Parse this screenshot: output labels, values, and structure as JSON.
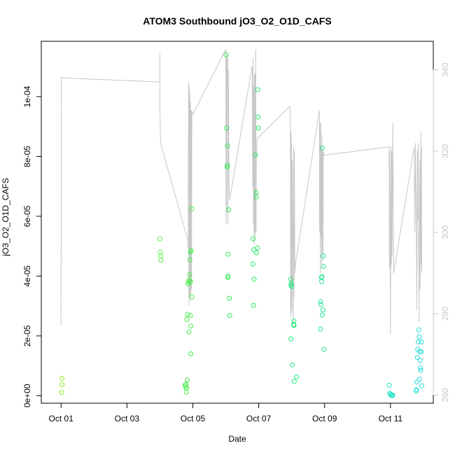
{
  "chart_data": {
    "type": "scatter",
    "title": "ATOM3 Southbound jO3_O2_O1D_CAFS",
    "xlabel": "Date",
    "ylabel": "jO3_O2_O1D_CAFS",
    "x_ticks": [
      "Oct 01",
      "Oct 03",
      "Oct 05",
      "Oct 07",
      "Oct 09",
      "Oct 11"
    ],
    "x_tick_days": [
      1,
      3,
      5,
      7,
      9,
      11
    ],
    "xlim_days": [
      0.4,
      12.3
    ],
    "y_ticks": [
      0,
      2e-05,
      4e-05,
      6e-05,
      8e-05,
      0.0001
    ],
    "y_tick_labels": [
      "0e+00",
      "2e-05",
      "4e-05",
      "6e-05",
      "8e-05",
      "1e-04"
    ],
    "ylim": [
      -2.5e-06,
      0.0001185
    ],
    "y2_ticks": [
      260,
      280,
      300,
      320,
      340
    ],
    "y2_tick_labels": [
      "260",
      "280",
      "300",
      "320",
      "340"
    ],
    "y2lim": [
      258,
      347
    ],
    "colors": {
      "line": "#c8c8c8",
      "axis": "#000000",
      "right_axis": "#c8c8c8",
      "color_start": "#8fee22",
      "color_mid": "#22ee55",
      "color_end": "#22dddd"
    },
    "series": [
      {
        "type": "scatter",
        "points": [
          [
            1.02,
            1.1e-06
          ],
          [
            1.03,
            3.7e-06
          ],
          [
            1.03,
            5.8e-06
          ],
          [
            4.0,
            5.25e-05
          ],
          [
            4.01,
            4.8e-05
          ],
          [
            4.03,
            4.67e-05
          ],
          [
            4.03,
            4.53e-05
          ],
          [
            4.77,
            3.6e-06
          ],
          [
            4.78,
            3e-06
          ],
          [
            4.79,
            3.8e-06
          ],
          [
            4.8,
            1.2e-06
          ],
          [
            4.81,
            2.5e-06
          ],
          [
            4.83,
            5.3e-06
          ],
          [
            4.82,
            2.55e-05
          ],
          [
            4.84,
            2.72e-05
          ],
          [
            4.86,
            3.74e-05
          ],
          [
            4.87,
            3.8e-05
          ],
          [
            4.88,
            3.85e-05
          ],
          [
            4.88,
            2.13e-05
          ],
          [
            4.9,
            4.05e-05
          ],
          [
            4.91,
            4.55e-05
          ],
          [
            4.92,
            4.8e-05
          ],
          [
            4.93,
            3.82e-05
          ],
          [
            4.93,
            2.68e-05
          ],
          [
            4.94,
            2.33e-05
          ],
          [
            4.94,
            1.4e-05
          ],
          [
            4.95,
            4.85e-05
          ],
          [
            4.97,
            3.3e-05
          ],
          [
            4.97,
            6.25e-05
          ],
          [
            6.01,
            0.000114
          ],
          [
            6.02,
            8.95e-05
          ],
          [
            6.04,
            7.65e-05
          ],
          [
            6.05,
            8.35e-05
          ],
          [
            6.05,
            7.7e-05
          ],
          [
            6.06,
            3.95e-05
          ],
          [
            6.07,
            4e-05
          ],
          [
            6.07,
            4.73e-05
          ],
          [
            6.09,
            6.22e-05
          ],
          [
            6.11,
            3.26e-05
          ],
          [
            6.12,
            2.68e-05
          ],
          [
            6.83,
            5.25e-05
          ],
          [
            6.85,
            4.88e-05
          ],
          [
            6.82,
            4.4e-05
          ],
          [
            6.84,
            3.02e-05
          ],
          [
            6.86,
            3.9e-05
          ],
          [
            6.9,
            8.05e-05
          ],
          [
            6.92,
            6.8e-05
          ],
          [
            6.93,
            6.65e-05
          ],
          [
            6.93,
            4.78e-05
          ],
          [
            6.96,
            4.94e-05
          ],
          [
            6.97,
            0.0001023
          ],
          [
            6.98,
            9.32e-05
          ],
          [
            6.99,
            8.95e-05
          ],
          [
            7.97,
            3.9e-05
          ],
          [
            7.98,
            3.7e-05
          ],
          [
            7.99,
            3.75e-05
          ],
          [
            8.0,
            3.65e-05
          ],
          [
            7.98,
            1.9e-05
          ],
          [
            8.02,
            1.03e-05
          ],
          [
            8.07,
            2.5e-05
          ],
          [
            8.07,
            2.35e-05
          ],
          [
            8.06,
            2.38e-05
          ],
          [
            8.08,
            4.8e-06
          ],
          [
            8.15,
            6.3e-06
          ],
          [
            8.88,
            3.15e-05
          ],
          [
            8.89,
            3.05e-05
          ],
          [
            8.9,
            3.95e-05
          ],
          [
            8.91,
            3.82e-05
          ],
          [
            8.92,
            3.98e-05
          ],
          [
            8.93,
            2.7e-05
          ],
          [
            8.88,
            2.23e-05
          ],
          [
            8.95,
            2.87e-05
          ],
          [
            8.96,
            4.68e-05
          ],
          [
            8.97,
            4.32e-05
          ],
          [
            8.98,
            1.55e-05
          ],
          [
            8.93,
            8.28e-05
          ],
          [
            10.96,
            3.5e-06
          ],
          [
            10.98,
            8e-07
          ],
          [
            11.0,
            5e-07
          ],
          [
            11.02,
            2e-07
          ],
          [
            11.05,
            0.0
          ],
          [
            11.07,
            2e-07
          ],
          [
            11.78,
            1.6e-06
          ],
          [
            11.79,
            2e-06
          ],
          [
            11.8,
            4.6e-06
          ],
          [
            11.82,
            1.28e-05
          ],
          [
            11.83,
            1.55e-05
          ],
          [
            11.84,
            1.8e-05
          ],
          [
            11.86,
            2.2e-05
          ],
          [
            11.87,
            1.97e-05
          ],
          [
            11.88,
            5.5e-06
          ],
          [
            11.89,
            1.48e-05
          ],
          [
            11.9,
            1.18e-05
          ],
          [
            11.91,
            9.3e-06
          ],
          [
            11.92,
            8.5e-06
          ],
          [
            11.93,
            1.47e-05
          ],
          [
            11.94,
            1.8e-05
          ],
          [
            11.95,
            3.3e-06
          ]
        ]
      },
      {
        "type": "line",
        "axis": "right",
        "points": [
          [
            1.0,
            277
          ],
          [
            1.01,
            338
          ],
          [
            4.0,
            337
          ],
          [
            4.0,
            344
          ],
          [
            4.0,
            331
          ],
          [
            4.02,
            322
          ],
          [
            4.85,
            298
          ],
          [
            4.86,
            296
          ],
          [
            4.87,
            337
          ],
          [
            4.88,
            282
          ],
          [
            4.89,
            336
          ],
          [
            4.9,
            284
          ],
          [
            4.91,
            334
          ],
          [
            4.92,
            283
          ],
          [
            4.93,
            332
          ],
          [
            4.94,
            285
          ],
          [
            4.95,
            330
          ],
          [
            4.96,
            286
          ],
          [
            4.97,
            330
          ],
          [
            5.0,
            329
          ],
          [
            6.0,
            345
          ],
          [
            6.01,
            302
          ],
          [
            6.02,
            343
          ],
          [
            6.03,
            305
          ],
          [
            6.04,
            344
          ],
          [
            6.05,
            341
          ],
          [
            6.06,
            343
          ],
          [
            6.07,
            302
          ],
          [
            6.08,
            340
          ],
          [
            6.1,
            311
          ],
          [
            6.12,
            308
          ],
          [
            6.8,
            341
          ],
          [
            6.82,
            311
          ],
          [
            6.83,
            343
          ],
          [
            6.84,
            302
          ],
          [
            6.85,
            336
          ],
          [
            6.86,
            297
          ],
          [
            6.87,
            339
          ],
          [
            6.88,
            300
          ],
          [
            6.89,
            339
          ],
          [
            6.9,
            299
          ],
          [
            6.91,
            345
          ],
          [
            6.92,
            300
          ],
          [
            6.93,
            318
          ],
          [
            6.95,
            323
          ],
          [
            7.94,
            331
          ],
          [
            7.96,
            328
          ],
          [
            7.97,
            279
          ],
          [
            7.98,
            325
          ],
          [
            7.99,
            281
          ],
          [
            8.0,
            322
          ],
          [
            8.01,
            280
          ],
          [
            8.02,
            318
          ],
          [
            8.05,
            278
          ],
          [
            8.06,
            321
          ],
          [
            8.07,
            284
          ],
          [
            8.08,
            320
          ],
          [
            8.1,
            290
          ],
          [
            8.13,
            293
          ],
          [
            8.84,
            330
          ],
          [
            8.85,
            300
          ],
          [
            8.86,
            327
          ],
          [
            8.87,
            290
          ],
          [
            8.88,
            327
          ],
          [
            8.89,
            299
          ],
          [
            8.9,
            321
          ],
          [
            8.91,
            291
          ],
          [
            8.92,
            324
          ],
          [
            8.93,
            295
          ],
          [
            8.94,
            320
          ],
          [
            8.95,
            293
          ],
          [
            8.96,
            320
          ],
          [
            8.98,
            319
          ],
          [
            10.96,
            321
          ],
          [
            10.97,
            291
          ],
          [
            10.98,
            320
          ],
          [
            11.0,
            275
          ],
          [
            11.02,
            321
          ],
          [
            11.03,
            292
          ],
          [
            11.04,
            320
          ],
          [
            11.05,
            294
          ],
          [
            11.07,
            327
          ],
          [
            11.1,
            290
          ],
          [
            11.72,
            321
          ],
          [
            11.74,
            300
          ],
          [
            11.76,
            322
          ],
          [
            11.78,
            306
          ],
          [
            11.8,
            281
          ],
          [
            11.82,
            320
          ],
          [
            11.83,
            303
          ],
          [
            11.84,
            322
          ],
          [
            11.85,
            308
          ],
          [
            11.87,
            278
          ],
          [
            11.89,
            318
          ],
          [
            11.9,
            286
          ],
          [
            11.92,
            325
          ],
          [
            11.93,
            292
          ],
          [
            11.94,
            321
          ],
          [
            11.95,
            290
          ]
        ]
      }
    ]
  }
}
